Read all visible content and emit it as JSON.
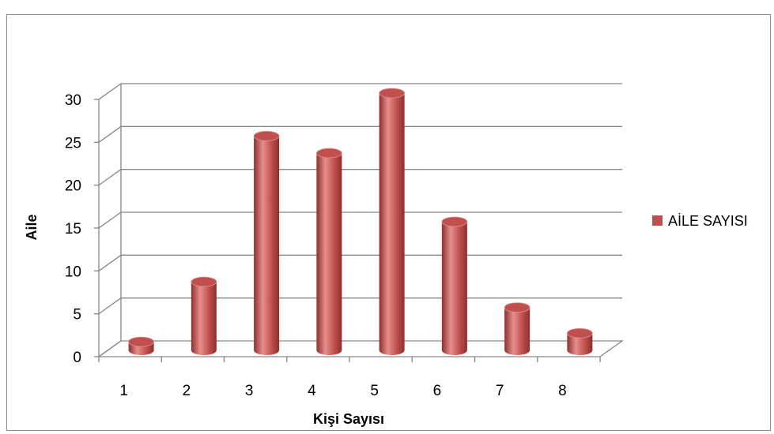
{
  "chart_data": {
    "type": "bar",
    "categories": [
      "1",
      "2",
      "3",
      "4",
      "5",
      "6",
      "7",
      "8"
    ],
    "series": [
      {
        "name": "AİLE SAYISI",
        "values": [
          1,
          8,
          25,
          23,
          30,
          15,
          5,
          2
        ]
      }
    ],
    "xlabel": "Kişi Sayısı",
    "ylabel": "Aile",
    "ylim": [
      0,
      30
    ],
    "yticks": [
      "0",
      "5",
      "10",
      "15",
      "20",
      "25",
      "30"
    ],
    "grid": true,
    "legend": "right",
    "style": "3d-cylinder",
    "colors": {
      "bar": "#c0504d",
      "bar_light": "#e68f8d",
      "bar_dark": "#8e2f2d",
      "grid": "#868686"
    }
  }
}
